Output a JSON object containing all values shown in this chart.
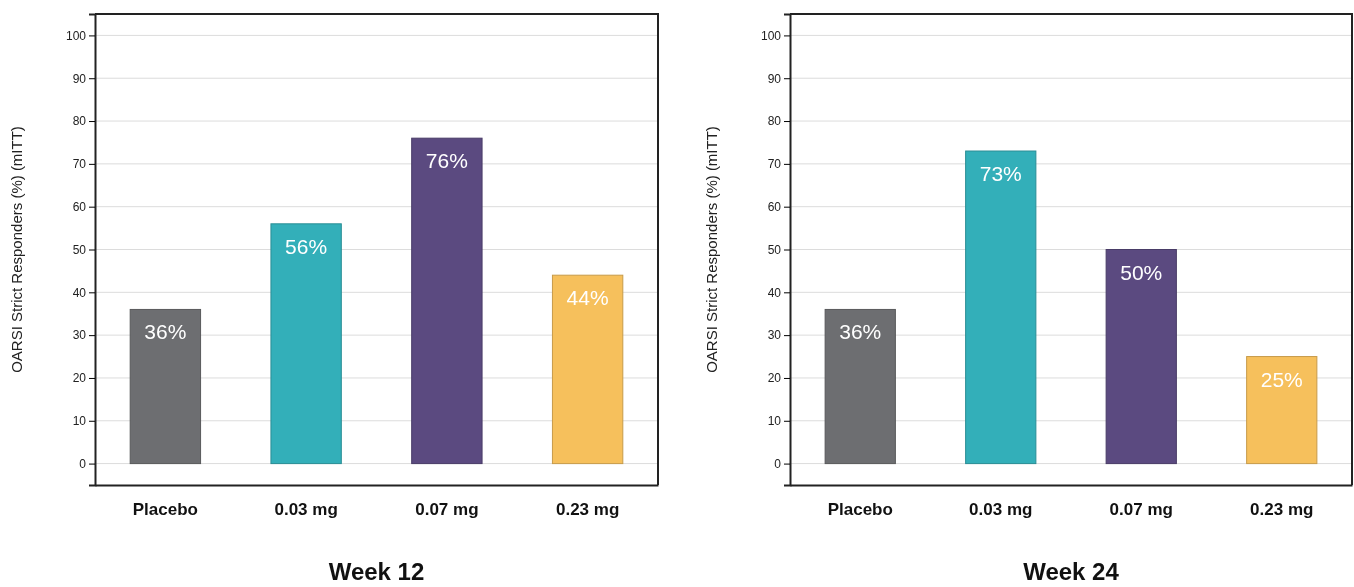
{
  "chart_data": [
    {
      "type": "bar",
      "title": "Week 12",
      "ylabel": "OARSI Strict Responders (%) (mITT)",
      "categories": [
        "Placebo",
        "0.03 mg",
        "0.07 mg",
        "0.23 mg"
      ],
      "values": [
        36,
        56,
        76,
        44
      ],
      "colors": [
        "#6d6e71",
        "#33afb9",
        "#5b4a80",
        "#f6c05c"
      ],
      "value_labels": [
        "36%",
        "56%",
        "76%",
        "44%"
      ],
      "ylim": [
        -5,
        105
      ],
      "yticks": [
        0,
        10,
        20,
        30,
        40,
        50,
        60,
        70,
        80,
        90,
        100
      ],
      "grid": "y"
    },
    {
      "type": "bar",
      "title": "Week 24",
      "ylabel": "OARSI Strict Responders (%) (mITT)",
      "categories": [
        "Placebo",
        "0.03 mg",
        "0.07 mg",
        "0.23 mg"
      ],
      "values": [
        36,
        73,
        50,
        25
      ],
      "colors": [
        "#6d6e71",
        "#33afb9",
        "#5b4a80",
        "#f6c05c"
      ],
      "value_labels": [
        "36%",
        "73%",
        "50%",
        "25%"
      ],
      "ylim": [
        -5,
        105
      ],
      "yticks": [
        0,
        10,
        20,
        30,
        40,
        50,
        60,
        70,
        80,
        90,
        100
      ],
      "grid": "y"
    }
  ]
}
